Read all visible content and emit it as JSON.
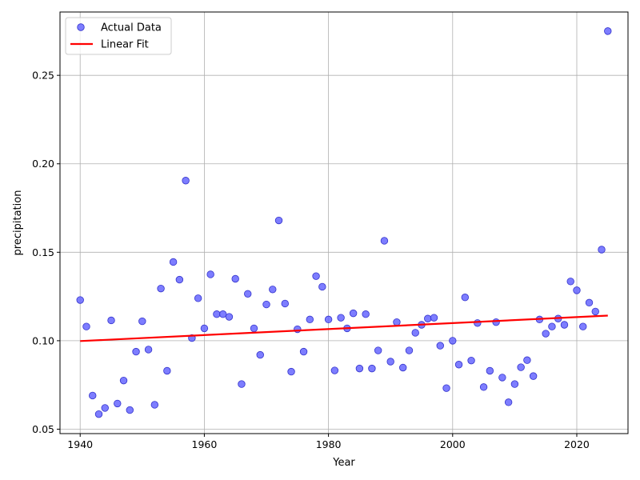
{
  "chart_data": {
    "type": "scatter",
    "xlabel": "Year",
    "ylabel": "precipitation",
    "xlim": [
      1936.75,
      2028.25
    ],
    "ylim": [
      0.0475,
      0.2858
    ],
    "x_ticks": [
      1940,
      1960,
      1980,
      2000,
      2020
    ],
    "x_tick_labels": [
      "1940",
      "1960",
      "1980",
      "2000",
      "2020"
    ],
    "y_ticks": [
      0.05,
      0.1,
      0.15,
      0.2,
      0.25
    ],
    "y_tick_labels": [
      "0.05",
      "0.10",
      "0.15",
      "0.20",
      "0.25"
    ],
    "grid": true,
    "legend_position": "top-left",
    "colors": {
      "scatter": "#6666ff",
      "scatter_edge": "#3333cc",
      "fit": "#ff0000",
      "grid": "#b0b0b0"
    },
    "series": [
      {
        "name": "Actual Data",
        "kind": "scatter",
        "x": [
          1940,
          1941,
          1942,
          1943,
          1944,
          1945,
          1946,
          1947,
          1948,
          1949,
          1950,
          1951,
          1952,
          1953,
          1954,
          1955,
          1956,
          1957,
          1958,
          1959,
          1960,
          1961,
          1962,
          1963,
          1964,
          1965,
          1966,
          1967,
          1968,
          1969,
          1970,
          1971,
          1972,
          1973,
          1974,
          1975,
          1976,
          1977,
          1978,
          1979,
          1980,
          1981,
          1982,
          1983,
          1984,
          1985,
          1986,
          1987,
          1988,
          1989,
          1990,
          1991,
          1992,
          1993,
          1994,
          1995,
          1996,
          1997,
          1998,
          1999,
          2000,
          2001,
          2002,
          2003,
          2004,
          2005,
          2006,
          2007,
          2008,
          2009,
          2010,
          2011,
          2012,
          2013,
          2014,
          2015,
          2016,
          2017,
          2018,
          2019,
          2020,
          2021,
          2022,
          2023,
          2024,
          2025
        ],
        "y": [
          0.123,
          0.108,
          0.069,
          0.0585,
          0.062,
          0.1115,
          0.0645,
          0.0775,
          0.0608,
          0.0938,
          0.111,
          0.095,
          0.0638,
          0.1295,
          0.083,
          0.1445,
          0.1345,
          0.1905,
          0.1015,
          0.124,
          0.107,
          0.1375,
          0.115,
          0.115,
          0.1135,
          0.135,
          0.0755,
          0.1265,
          0.107,
          0.092,
          0.1205,
          0.129,
          0.168,
          0.121,
          0.0825,
          0.1065,
          0.0938,
          0.112,
          0.1365,
          0.1305,
          0.112,
          0.0832,
          0.113,
          0.107,
          0.1155,
          0.0843,
          0.115,
          0.0843,
          0.0945,
          0.1565,
          0.0882,
          0.1105,
          0.0848,
          0.0945,
          0.1045,
          0.109,
          0.1125,
          0.113,
          0.0972,
          0.0732,
          0.1,
          0.0865,
          0.1245,
          0.0888,
          0.11,
          0.0738,
          0.083,
          0.1105,
          0.0792,
          0.0652,
          0.0755,
          0.085,
          0.089,
          0.08,
          0.112,
          0.104,
          0.108,
          0.1125,
          0.109,
          0.1335,
          0.1285,
          0.108,
          0.1215,
          0.1165,
          0.1515,
          0.275
        ]
      },
      {
        "name": "Linear Fit",
        "kind": "line",
        "x": [
          1940,
          2025
        ],
        "y": [
          0.0998,
          0.1142
        ]
      }
    ]
  }
}
